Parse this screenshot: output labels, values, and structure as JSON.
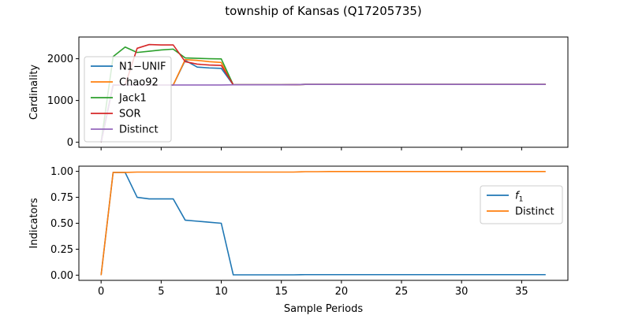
{
  "figure": {
    "title": "township of Kansas (Q17205735)"
  },
  "chart_data": [
    {
      "type": "line",
      "ylabel": "Cardinality",
      "xlabel": "",
      "xlim": [
        -1.85,
        38.85
      ],
      "ylim": [
        -120,
        2520
      ],
      "xticks": [
        0,
        5,
        10,
        15,
        20,
        25,
        30,
        35
      ],
      "show_xtick_labels": false,
      "yticks": [
        0,
        1000,
        2000
      ],
      "ytick_labels": [
        "0",
        "1000",
        "2000"
      ],
      "grid": false,
      "legend_position": "upper-left",
      "x": [
        0,
        1,
        2,
        3,
        4,
        5,
        6,
        7,
        8,
        9,
        10,
        11,
        12,
        13,
        14,
        15,
        16,
        17,
        18,
        19,
        20,
        21,
        22,
        23,
        24,
        25,
        26,
        27,
        28,
        29,
        30,
        31,
        32,
        33,
        34,
        35,
        36,
        37
      ],
      "series": [
        {
          "name": "N1−UNIF",
          "color": "#1f77b4",
          "values": [
            0,
            1370,
            1370,
            1370,
            1370,
            1370,
            1370,
            1960,
            1800,
            1780,
            1770,
            1375,
            1375,
            1375,
            1375,
            1375,
            1378,
            1385,
            1385,
            1385,
            1385,
            1385,
            1385,
            1385,
            1385,
            1385,
            1385,
            1385,
            1385,
            1385,
            1385,
            1385,
            1385,
            1385,
            1385,
            1385,
            1385,
            1385
          ]
        },
        {
          "name": "Chao92",
          "color": "#ff7f0e",
          "values": [
            0,
            1370,
            1370,
            1370,
            1370,
            1370,
            1370,
            1980,
            1960,
            1930,
            1910,
            1375,
            1375,
            1375,
            1375,
            1375,
            1378,
            1385,
            1385,
            1385,
            1385,
            1385,
            1385,
            1385,
            1385,
            1385,
            1385,
            1385,
            1385,
            1385,
            1385,
            1385,
            1385,
            1385,
            1385,
            1385,
            1385,
            1385
          ]
        },
        {
          "name": "Jack1",
          "color": "#2ca02c",
          "values": [
            0,
            2050,
            2280,
            2150,
            2180,
            2210,
            2230,
            2020,
            2010,
            2000,
            1995,
            1375,
            1375,
            1375,
            1375,
            1375,
            1378,
            1385,
            1385,
            1385,
            1385,
            1385,
            1385,
            1385,
            1385,
            1385,
            1385,
            1385,
            1385,
            1385,
            1385,
            1385,
            1385,
            1385,
            1385,
            1385,
            1385,
            1385
          ]
        },
        {
          "name": "SOR",
          "color": "#d62728",
          "values": [
            0,
            1370,
            1370,
            2250,
            2340,
            2330,
            2330,
            1930,
            1870,
            1850,
            1840,
            1375,
            1375,
            1375,
            1375,
            1375,
            1378,
            1385,
            1385,
            1385,
            1385,
            1385,
            1385,
            1385,
            1385,
            1385,
            1385,
            1385,
            1385,
            1385,
            1385,
            1385,
            1385,
            1385,
            1385,
            1385,
            1385,
            1385
          ]
        },
        {
          "name": "Distinct",
          "color": "#9467bd",
          "values": [
            0,
            1370,
            1370,
            1370,
            1370,
            1370,
            1370,
            1370,
            1370,
            1370,
            1370,
            1375,
            1375,
            1375,
            1375,
            1375,
            1378,
            1385,
            1385,
            1385,
            1385,
            1385,
            1385,
            1385,
            1385,
            1385,
            1385,
            1385,
            1385,
            1385,
            1385,
            1385,
            1385,
            1385,
            1385,
            1385,
            1385,
            1385
          ]
        }
      ]
    },
    {
      "type": "line",
      "ylabel": "Indicators",
      "xlabel": "Sample Periods",
      "xlim": [
        -1.85,
        38.85
      ],
      "ylim": [
        -0.05,
        1.05
      ],
      "xticks": [
        0,
        5,
        10,
        15,
        20,
        25,
        30,
        35
      ],
      "show_xtick_labels": true,
      "xtick_labels": [
        "0",
        "5",
        "10",
        "15",
        "20",
        "25",
        "30",
        "35"
      ],
      "yticks": [
        0,
        0.25,
        0.5,
        0.75,
        1.0
      ],
      "ytick_labels": [
        "0.00",
        "0.25",
        "0.50",
        "0.75",
        "1.00"
      ],
      "grid": false,
      "legend_position": "upper-right",
      "x": [
        0,
        1,
        2,
        3,
        4,
        5,
        6,
        7,
        8,
        9,
        10,
        11,
        12,
        13,
        14,
        15,
        16,
        17,
        18,
        19,
        20,
        21,
        22,
        23,
        24,
        25,
        26,
        27,
        28,
        29,
        30,
        31,
        32,
        33,
        34,
        35,
        36,
        37
      ],
      "series": [
        {
          "name": "f1",
          "color": "#1f77b4",
          "values": [
            0,
            0.99,
            0.99,
            0.75,
            0.735,
            0.735,
            0.735,
            0.53,
            0.52,
            0.51,
            0.5,
            0.003,
            0.003,
            0.003,
            0.003,
            0.003,
            0.003,
            0.005,
            0.005,
            0.005,
            0.005,
            0.005,
            0.005,
            0.005,
            0.005,
            0.005,
            0.005,
            0.005,
            0.005,
            0.005,
            0.005,
            0.005,
            0.005,
            0.005,
            0.005,
            0.005,
            0.005,
            0.005
          ]
        },
        {
          "name": "Distinct",
          "color": "#ff7f0e",
          "values": [
            0,
            0.99,
            0.99,
            0.993,
            0.993,
            0.993,
            0.993,
            0.993,
            0.993,
            0.993,
            0.993,
            0.993,
            0.993,
            0.993,
            0.993,
            0.993,
            0.993,
            0.997,
            0.997,
            0.998,
            0.998,
            0.998,
            0.998,
            0.998,
            0.998,
            0.998,
            0.998,
            0.998,
            0.998,
            0.998,
            0.998,
            0.998,
            0.998,
            0.998,
            0.998,
            0.998,
            0.998,
            0.998
          ]
        }
      ]
    }
  ]
}
